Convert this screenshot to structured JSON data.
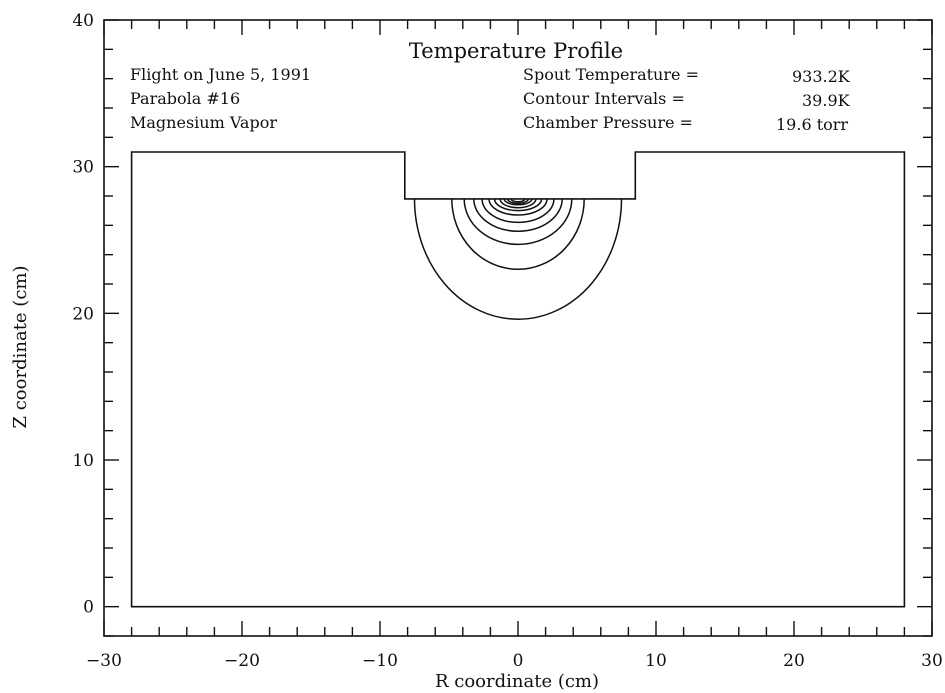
{
  "chart_data": {
    "type": "contour",
    "title": "Temperature Profile",
    "xlabel": "R coordinate (cm)",
    "ylabel": "Z coordinate (cm)",
    "xlim": [
      -30,
      30
    ],
    "ylim": [
      -2,
      40
    ],
    "xticks": [
      -30,
      -20,
      -10,
      0,
      10,
      20,
      30
    ],
    "yticks": [
      0,
      10,
      20,
      30,
      40
    ],
    "x_minor_step": 2,
    "y_minor_step": 2,
    "grid": false,
    "annotations_left": [
      "Flight on June 5, 1991",
      "Parabola #16",
      "Magnesium Vapor"
    ],
    "annotations_right": [
      {
        "label": "Spout Temperature =",
        "value": "933.2K"
      },
      {
        "label": "Contour Intervals =",
        "value": "39.9K"
      },
      {
        "label": "Chamber Pressure =",
        "value": "19.6 torr"
      }
    ],
    "chamber_outline": [
      [
        -28,
        0
      ],
      [
        -28,
        31
      ],
      [
        -8.2,
        31
      ],
      [
        -8.2,
        27.8
      ],
      [
        8.5,
        27.8
      ],
      [
        8.5,
        31
      ],
      [
        28,
        31
      ],
      [
        28,
        0
      ]
    ],
    "spout_temperature_K": 933.2,
    "contour_interval_K": 39.9,
    "chamber_pressure_torr": 19.6,
    "contours": [
      {
        "half_width": 7.5,
        "lowest_z": 19.6
      },
      {
        "half_width": 4.8,
        "lowest_z": 23.0
      },
      {
        "half_width": 3.9,
        "lowest_z": 24.7
      },
      {
        "half_width": 3.2,
        "lowest_z": 25.6
      },
      {
        "half_width": 2.6,
        "lowest_z": 26.2
      },
      {
        "half_width": 2.1,
        "lowest_z": 26.7
      },
      {
        "half_width": 1.7,
        "lowest_z": 27.0
      },
      {
        "half_width": 1.3,
        "lowest_z": 27.2
      },
      {
        "half_width": 1.0,
        "lowest_z": 27.4
      },
      {
        "half_width": 0.75,
        "lowest_z": 27.5
      },
      {
        "half_width": 0.5,
        "lowest_z": 27.6
      }
    ],
    "contour_top_z": 27.8
  }
}
